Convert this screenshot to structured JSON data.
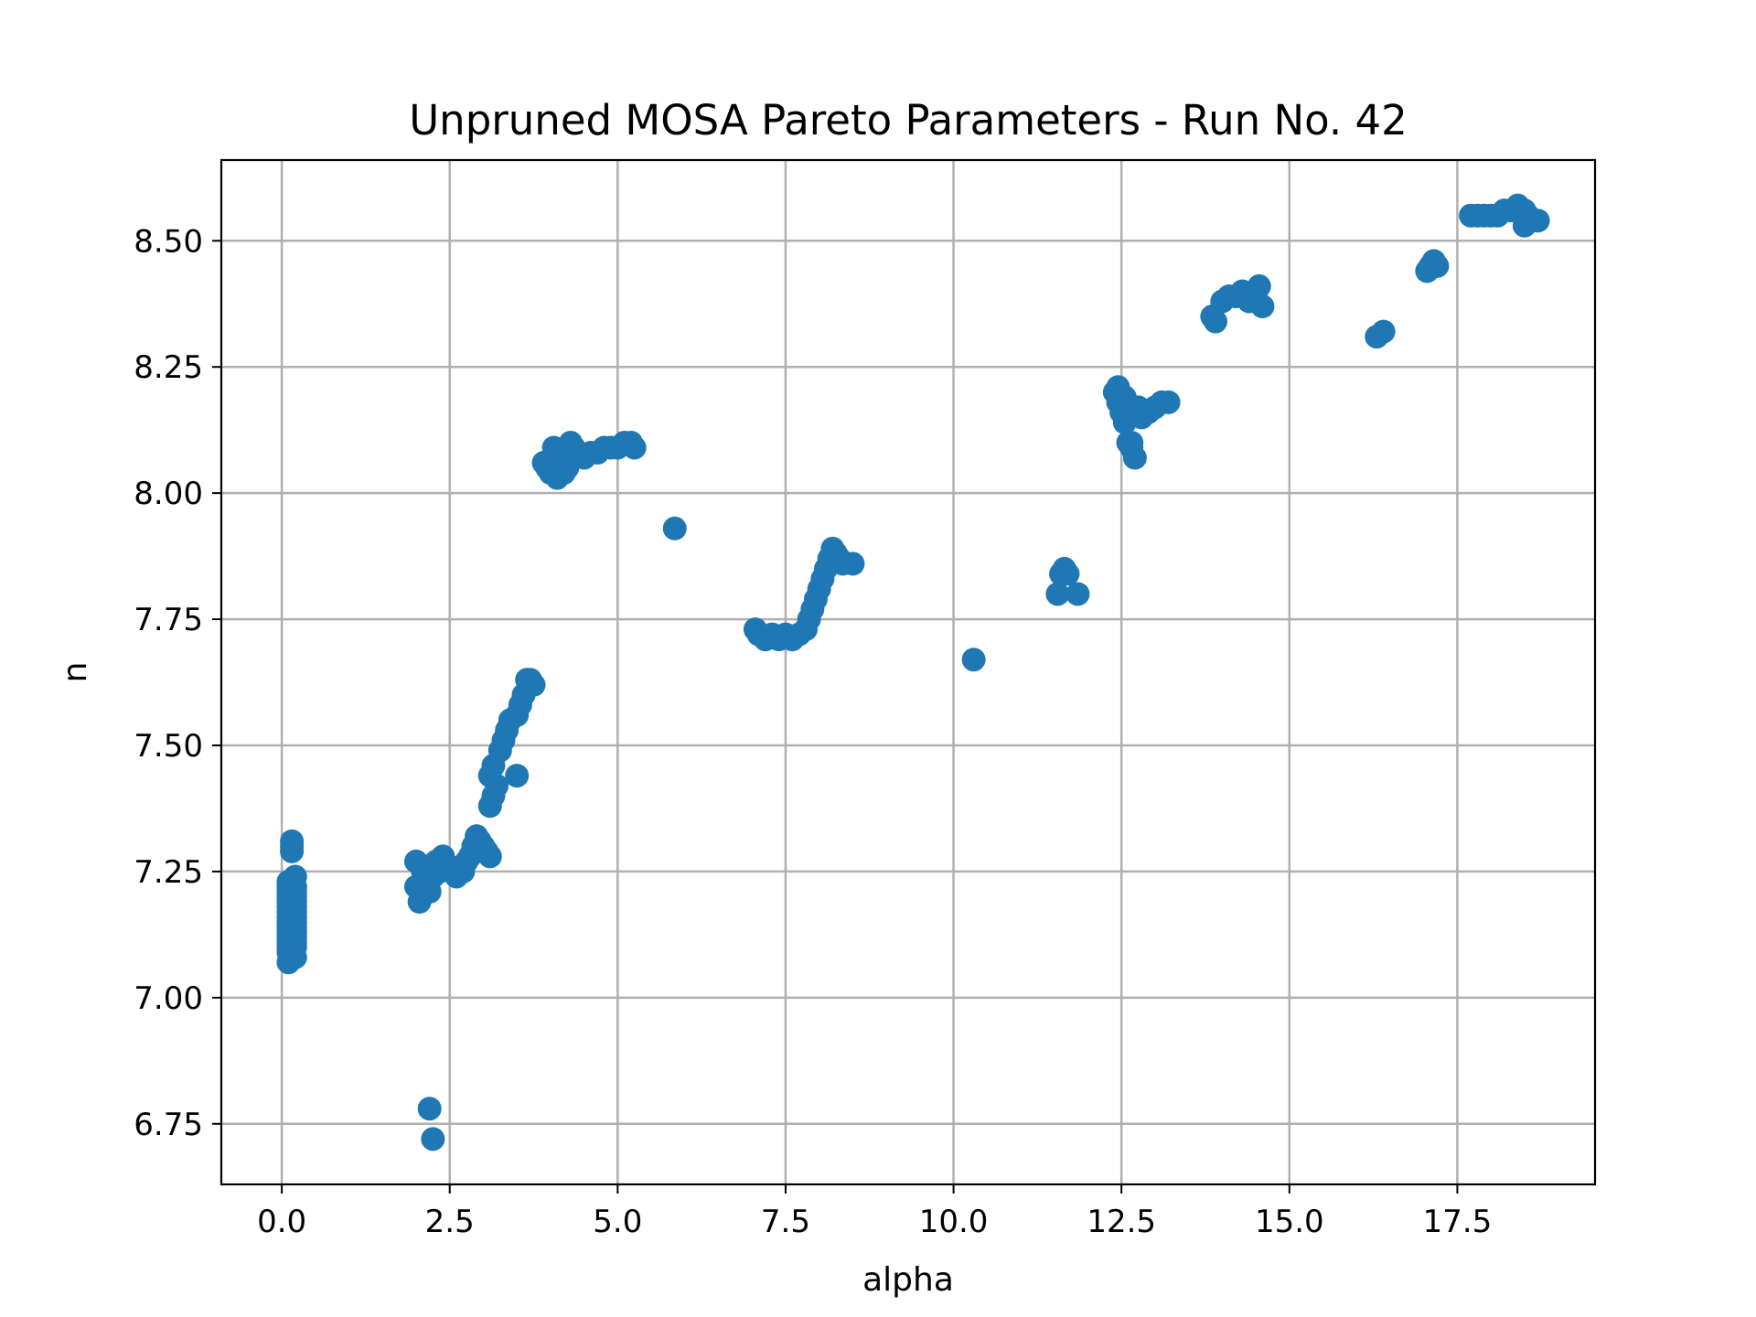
{
  "chart_data": {
    "type": "scatter",
    "title": "Unpruned MOSA Pareto Parameters - Run No. 42",
    "xlabel": "alpha",
    "ylabel": "n",
    "xlim": [
      -0.9,
      19.55
    ],
    "ylim": [
      6.63,
      8.66
    ],
    "xticks": [
      0.0,
      2.5,
      5.0,
      7.5,
      10.0,
      12.5,
      15.0,
      17.5
    ],
    "xtick_labels": [
      "0.0",
      "2.5",
      "5.0",
      "7.5",
      "10.0",
      "12.5",
      "15.0",
      "17.5"
    ],
    "yticks": [
      6.75,
      7.0,
      7.25,
      7.5,
      7.75,
      8.0,
      8.25,
      8.5
    ],
    "ytick_labels": [
      "6.75",
      "7.00",
      "7.25",
      "7.50",
      "7.75",
      "8.00",
      "8.25",
      "8.50"
    ],
    "grid": true,
    "marker_color": "#1f77b4",
    "series": [
      {
        "x": [
          0.1,
          0.1,
          0.1,
          0.1,
          0.1,
          0.1,
          0.1,
          0.1,
          0.1,
          0.1,
          0.1,
          0.1,
          0.1,
          0.1,
          0.1,
          0.1,
          0.2,
          0.2,
          0.2,
          0.2,
          0.2,
          0.2,
          0.2,
          0.2,
          0.2,
          0.2,
          0.2,
          0.2,
          0.2,
          0.2,
          0.2,
          0.15,
          0.15,
          0.15,
          2.0,
          2.0,
          2.05,
          2.1,
          2.15,
          2.2,
          2.25,
          2.3,
          2.35,
          2.4,
          2.5,
          2.6,
          2.7,
          2.75,
          2.8,
          2.85,
          2.9,
          2.95,
          3.0,
          3.05,
          3.1,
          2.2,
          2.25,
          3.1,
          3.15,
          3.2,
          3.1,
          3.15,
          3.25,
          3.3,
          3.35,
          3.4,
          3.5,
          3.55,
          3.6,
          3.65,
          3.7,
          3.75,
          3.5,
          3.9,
          3.95,
          4.0,
          4.05,
          4.1,
          4.15,
          4.2,
          4.25,
          4.3,
          4.35,
          4.4,
          4.5,
          4.6,
          4.7,
          4.8,
          4.9,
          5.0,
          5.1,
          5.2,
          5.25,
          4.1,
          4.2,
          5.85,
          7.05,
          7.1,
          7.2,
          7.3,
          7.4,
          7.5,
          7.6,
          7.7,
          7.8,
          7.85,
          7.9,
          7.95,
          8.0,
          8.05,
          8.1,
          8.15,
          8.2,
          8.25,
          8.3,
          8.35,
          8.5,
          10.3,
          11.55,
          11.6,
          11.65,
          11.7,
          11.85,
          12.4,
          12.45,
          12.5,
          12.55,
          12.6,
          12.65,
          12.7,
          12.75,
          12.8,
          12.9,
          13.0,
          13.1,
          13.2,
          12.45,
          12.55,
          12.65,
          13.85,
          13.9,
          14.0,
          14.1,
          14.2,
          14.3,
          14.4,
          14.5,
          14.55,
          14.6,
          14.5,
          16.3,
          16.4,
          17.05,
          17.1,
          17.15,
          17.2,
          17.7,
          17.8,
          17.9,
          18.0,
          18.1,
          18.2,
          18.3,
          18.4,
          18.5,
          18.55,
          18.6,
          18.7,
          18.5
        ],
        "y": [
          7.07,
          7.09,
          7.11,
          7.13,
          7.15,
          7.17,
          7.19,
          7.21,
          7.23,
          7.12,
          7.14,
          7.16,
          7.18,
          7.2,
          7.22,
          7.1,
          7.08,
          7.1,
          7.12,
          7.14,
          7.16,
          7.18,
          7.2,
          7.22,
          7.24,
          7.11,
          7.13,
          7.15,
          7.17,
          7.19,
          7.21,
          7.3,
          7.29,
          7.31,
          7.27,
          7.22,
          7.19,
          7.25,
          7.26,
          7.21,
          7.24,
          7.27,
          7.25,
          7.28,
          7.26,
          7.24,
          7.25,
          7.27,
          7.28,
          7.3,
          7.32,
          7.31,
          7.3,
          7.29,
          7.28,
          6.78,
          6.72,
          7.38,
          7.4,
          7.42,
          7.44,
          7.46,
          7.49,
          7.51,
          7.53,
          7.55,
          7.56,
          7.58,
          7.6,
          7.63,
          7.63,
          7.62,
          7.44,
          8.06,
          8.05,
          8.04,
          8.09,
          8.07,
          8.06,
          8.08,
          8.05,
          8.1,
          8.09,
          8.08,
          8.07,
          8.08,
          8.08,
          8.09,
          8.09,
          8.09,
          8.1,
          8.1,
          8.09,
          8.03,
          8.04,
          7.93,
          7.73,
          7.72,
          7.71,
          7.72,
          7.71,
          7.72,
          7.71,
          7.72,
          7.73,
          7.75,
          7.77,
          7.79,
          7.81,
          7.83,
          7.85,
          7.87,
          7.89,
          7.88,
          7.87,
          7.86,
          7.86,
          7.67,
          7.8,
          7.84,
          7.85,
          7.84,
          7.8,
          8.2,
          8.18,
          8.16,
          8.14,
          8.1,
          8.09,
          8.07,
          8.17,
          8.15,
          8.16,
          8.17,
          8.18,
          8.18,
          8.21,
          8.19,
          8.1,
          8.35,
          8.34,
          8.38,
          8.39,
          8.39,
          8.4,
          8.38,
          8.4,
          8.41,
          8.37,
          8.39,
          8.31,
          8.32,
          8.44,
          8.45,
          8.46,
          8.45,
          8.55,
          8.55,
          8.55,
          8.55,
          8.55,
          8.56,
          8.56,
          8.57,
          8.56,
          8.55,
          8.54,
          8.54,
          8.53
        ]
      }
    ]
  }
}
